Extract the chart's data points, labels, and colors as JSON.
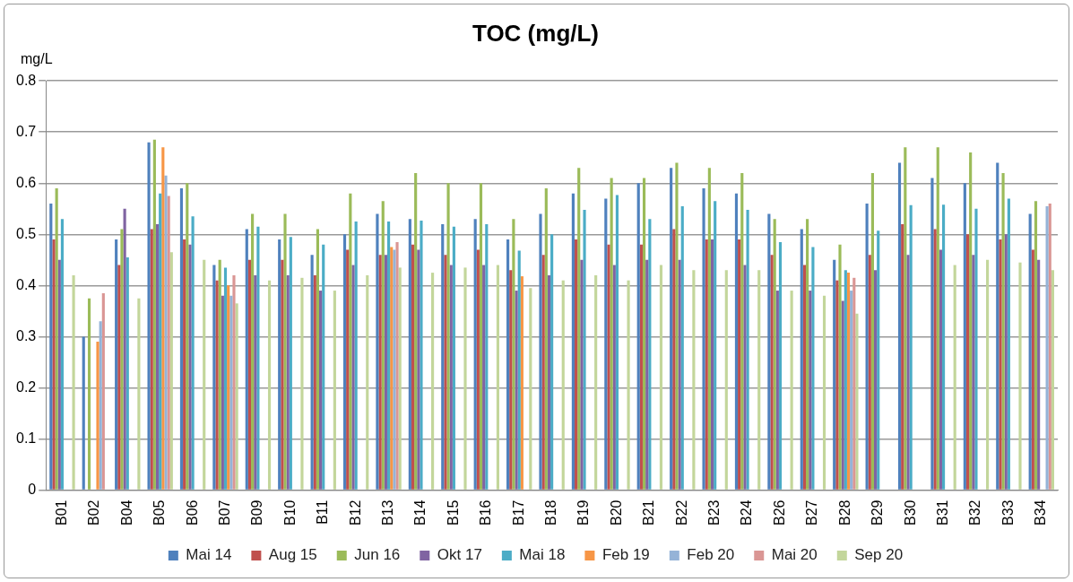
{
  "chart_data": {
    "type": "bar",
    "title": "TOC (mg/L)",
    "ylabel": "mg/L",
    "categories": [
      "B01",
      "B02",
      "B04",
      "B05",
      "B06",
      "B07",
      "B09",
      "B10",
      "B11",
      "B12",
      "B13",
      "B14",
      "B15",
      "B16",
      "B17",
      "B18",
      "B19",
      "B20",
      "B21",
      "B22",
      "B23",
      "B24",
      "B26",
      "B27",
      "B28",
      "B29",
      "B30",
      "B31",
      "B32",
      "B33",
      "B34"
    ],
    "series": [
      {
        "name": "Mai 14",
        "color": "#4f81bd",
        "values": [
          0.56,
          0.3,
          0.49,
          0.68,
          0.59,
          0.44,
          0.51,
          0.49,
          0.46,
          0.5,
          0.54,
          0.53,
          0.52,
          0.53,
          0.49,
          0.54,
          0.58,
          0.57,
          0.6,
          0.63,
          0.59,
          0.58,
          0.54,
          0.51,
          0.45,
          0.56,
          0.64,
          0.61,
          0.6,
          0.64,
          0.54
        ]
      },
      {
        "name": "Aug 15",
        "color": "#c0504d",
        "values": [
          0.49,
          null,
          0.44,
          0.51,
          0.49,
          0.41,
          0.45,
          0.45,
          0.42,
          0.47,
          0.46,
          0.48,
          0.46,
          0.47,
          0.43,
          0.46,
          0.49,
          0.48,
          0.48,
          0.51,
          0.49,
          0.49,
          0.46,
          0.44,
          0.41,
          0.46,
          0.52,
          0.51,
          0.5,
          0.49,
          0.47
        ]
      },
      {
        "name": "Jun 16",
        "color": "#9bbb59",
        "values": [
          0.59,
          0.375,
          0.51,
          0.685,
          0.6,
          0.45,
          0.54,
          0.54,
          0.51,
          0.58,
          0.565,
          0.62,
          0.6,
          0.6,
          0.53,
          0.59,
          0.63,
          0.61,
          0.61,
          0.64,
          0.63,
          0.62,
          0.53,
          0.53,
          0.48,
          0.62,
          0.67,
          0.67,
          0.66,
          0.62,
          0.565
        ]
      },
      {
        "name": "Okt 17",
        "color": "#8064a2",
        "values": [
          0.45,
          null,
          0.55,
          0.52,
          0.48,
          0.38,
          0.42,
          0.42,
          0.39,
          0.44,
          0.46,
          0.47,
          0.44,
          0.44,
          0.39,
          0.42,
          0.45,
          0.44,
          0.45,
          0.45,
          0.49,
          0.44,
          0.39,
          0.39,
          0.37,
          0.43,
          0.46,
          0.47,
          0.46,
          0.5,
          0.45
        ]
      },
      {
        "name": "Mai 18",
        "color": "#4bacc6",
        "values": [
          0.53,
          null,
          0.455,
          0.58,
          0.535,
          0.435,
          0.515,
          0.495,
          0.48,
          0.525,
          0.525,
          0.527,
          0.515,
          0.52,
          0.468,
          0.5,
          0.548,
          0.577,
          0.53,
          0.555,
          0.565,
          0.548,
          0.485,
          0.475,
          0.43,
          0.507,
          0.557,
          0.558,
          0.55,
          0.57,
          null
        ]
      },
      {
        "name": "Feb 19",
        "color": "#f79646",
        "values": [
          null,
          0.29,
          null,
          0.67,
          null,
          0.4,
          null,
          null,
          null,
          null,
          0.475,
          null,
          null,
          null,
          0.418,
          null,
          null,
          null,
          null,
          null,
          null,
          null,
          null,
          null,
          0.425,
          null,
          null,
          null,
          null,
          null,
          null
        ]
      },
      {
        "name": "Feb 20",
        "color": "#95b3d7",
        "values": [
          null,
          0.33,
          null,
          0.615,
          null,
          0.38,
          null,
          null,
          null,
          null,
          0.47,
          null,
          null,
          null,
          null,
          null,
          null,
          null,
          null,
          null,
          null,
          null,
          null,
          null,
          0.39,
          null,
          null,
          null,
          null,
          null,
          0.555
        ]
      },
      {
        "name": "Mai 20",
        "color": "#da9694",
        "values": [
          null,
          0.385,
          null,
          0.575,
          null,
          0.42,
          null,
          null,
          null,
          null,
          0.485,
          null,
          null,
          null,
          null,
          null,
          null,
          null,
          null,
          null,
          null,
          null,
          null,
          null,
          0.415,
          null,
          null,
          null,
          null,
          null,
          0.56
        ]
      },
      {
        "name": "Sep 20",
        "color": "#c3d69b",
        "values": [
          0.42,
          null,
          0.375,
          0.465,
          0.45,
          0.365,
          0.41,
          0.415,
          0.39,
          0.42,
          0.435,
          0.425,
          0.435,
          0.44,
          0.395,
          0.41,
          0.42,
          0.41,
          0.44,
          0.43,
          0.43,
          0.43,
          0.39,
          0.38,
          0.345,
          null,
          null,
          0.44,
          0.45,
          0.445,
          0.43
        ]
      }
    ],
    "ylim": [
      0,
      0.8
    ],
    "yticks": [
      0,
      0.1,
      0.2,
      0.3,
      0.4,
      0.5,
      0.6,
      0.7,
      0.8
    ],
    "grid": "y",
    "legend": "bottom"
  }
}
